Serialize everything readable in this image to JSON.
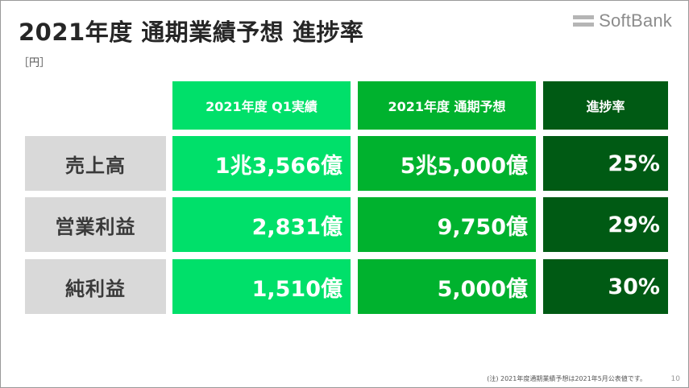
{
  "slide": {
    "title": "2021年度 通期業績予想 進捗率",
    "unit": "［円］",
    "logo_text": "SoftBank",
    "footnote": "(注) 2021年度通期業績予想は2021年5月公表値です。",
    "page_number": "10"
  },
  "table": {
    "headers": [
      "2021年度 Q1実績",
      "2021年度 通期予想",
      "進捗率"
    ],
    "rows": [
      {
        "label": "売上高",
        "q1": "1兆3,566億",
        "forecast": "5兆5,000億",
        "progress": "25%"
      },
      {
        "label": "営業利益",
        "q1": "2,831億",
        "forecast": "9,750億",
        "progress": "29%"
      },
      {
        "label": "純利益",
        "q1": "1,510億",
        "forecast": "5,000億",
        "progress": "30%"
      }
    ]
  },
  "colors": {
    "col_q1": "#00e06a",
    "col_forecast": "#00b22e",
    "col_progress": "#005a14",
    "label_bg": "#d9d9d9"
  }
}
